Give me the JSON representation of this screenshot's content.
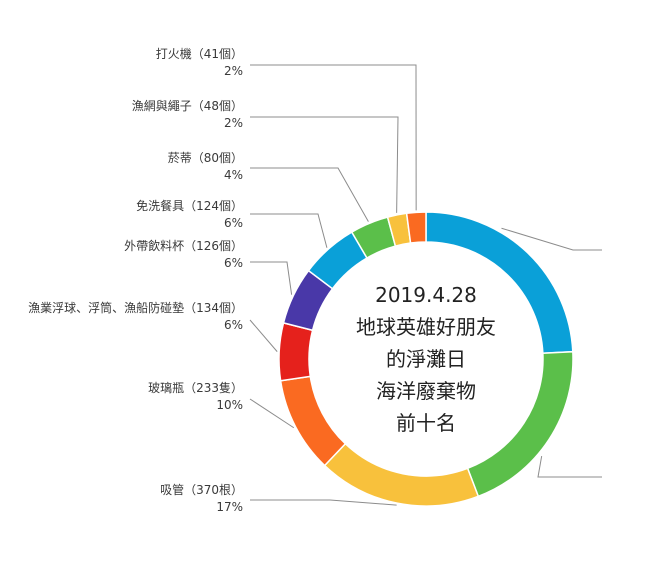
{
  "chart_data": {
    "type": "pie",
    "donut": true,
    "center_text": [
      "2019.4.28",
      "地球英雄好朋友",
      "的淨灘日",
      "海洋廢棄物",
      "前十名"
    ],
    "slices": [
      {
        "label": "",
        "count_text": "",
        "pct_text": "",
        "value": 23,
        "color": "#0aa0d8"
      },
      {
        "label": "",
        "count_text": "",
        "pct_text": "",
        "value": 19,
        "color": "#5bbf4a"
      },
      {
        "label": "吸管",
        "count_text": "（370根）",
        "pct_text": "17%",
        "value": 17,
        "color": "#f8c13c"
      },
      {
        "label": "玻璃瓶",
        "count_text": "（233隻）",
        "pct_text": "10%",
        "value": 10,
        "color": "#fa6a21"
      },
      {
        "label": "漁業浮球、浮筒、漁船防碰墊",
        "count_text": "（134個）",
        "pct_text": "6%",
        "value": 6,
        "color": "#e5211c"
      },
      {
        "label": "外帶飲料杯",
        "count_text": "（126個）",
        "pct_text": "6%",
        "value": 6,
        "color": "#4938a8"
      },
      {
        "label": "免洗餐具",
        "count_text": "（124個）",
        "pct_text": "6%",
        "value": 6,
        "color": "#0aa0d8"
      },
      {
        "label": "菸蒂",
        "count_text": "（80個）",
        "pct_text": "4%",
        "value": 4,
        "color": "#5bbf4a"
      },
      {
        "label": "漁網與繩子",
        "count_text": "（48個）",
        "pct_text": "2%",
        "value": 2,
        "color": "#f8c13c"
      },
      {
        "label": "打火機",
        "count_text": "（41個）",
        "pct_text": "2%",
        "value": 2,
        "color": "#fa6a21"
      }
    ]
  }
}
